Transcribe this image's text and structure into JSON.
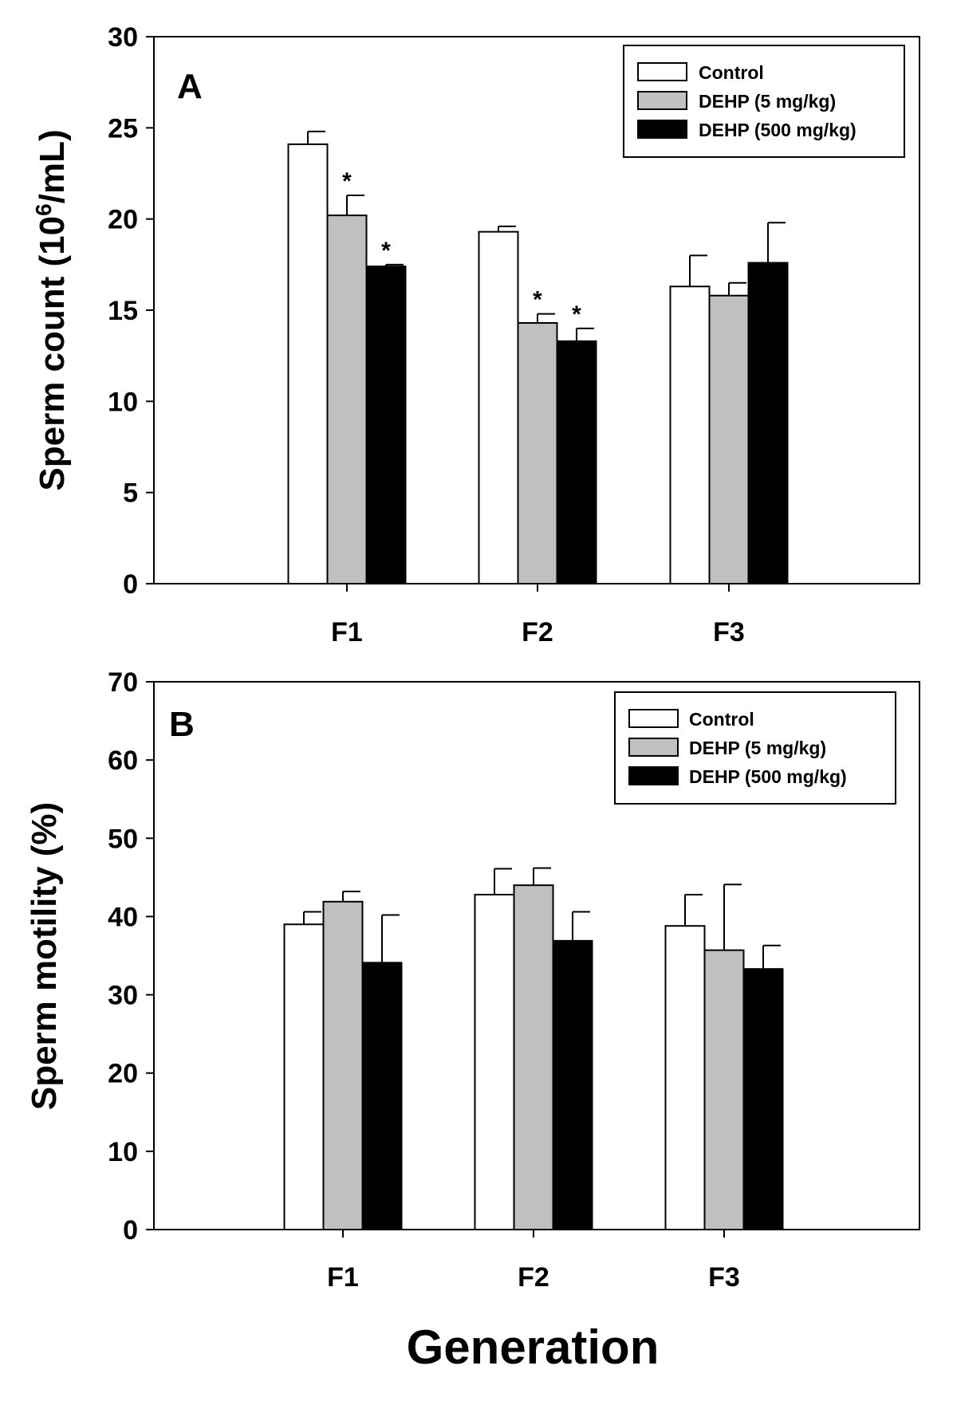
{
  "chart_data": [
    {
      "type": "bar",
      "panel_label": "A",
      "categories": [
        "F1",
        "F2",
        "F3"
      ],
      "series": [
        {
          "name": "Control",
          "color": "#ffffff",
          "values": [
            24.1,
            19.3,
            16.3
          ],
          "errors": [
            0.7,
            0.3,
            1.7
          ],
          "significance": [
            "",
            "",
            ""
          ]
        },
        {
          "name": "DEHP (5 mg/kg)",
          "color": "#c0c0c0",
          "values": [
            20.2,
            14.3,
            15.8
          ],
          "errors": [
            1.1,
            0.5,
            0.7
          ],
          "significance": [
            "*",
            "*",
            ""
          ]
        },
        {
          "name": "DEHP (500 mg/kg)",
          "color": "#000000",
          "values": [
            17.4,
            13.3,
            17.6
          ],
          "errors": [
            0.1,
            0.7,
            2.2
          ],
          "significance": [
            "*",
            "*",
            ""
          ]
        }
      ],
      "ylabel_prefix": "Sperm count (10",
      "ylabel_sup": "6",
      "ylabel_suffix": "/mL)",
      "ylim": [
        0,
        30
      ],
      "yticks": [
        0,
        5,
        10,
        15,
        20,
        25,
        30
      ],
      "legend": "top-right",
      "grid": false
    },
    {
      "type": "bar",
      "panel_label": "B",
      "categories": [
        "F1",
        "F2",
        "F3"
      ],
      "series": [
        {
          "name": "Control",
          "color": "#ffffff",
          "values": [
            39.0,
            42.8,
            38.8
          ],
          "errors": [
            1.6,
            3.3,
            4.0
          ],
          "significance": [
            "",
            "",
            ""
          ]
        },
        {
          "name": "DEHP (5 mg/kg)",
          "color": "#c0c0c0",
          "values": [
            41.9,
            44.0,
            35.7
          ],
          "errors": [
            1.3,
            2.2,
            8.4
          ],
          "significance": [
            "",
            "",
            ""
          ]
        },
        {
          "name": "DEHP (500 mg/kg)",
          "color": "#000000",
          "values": [
            34.1,
            36.9,
            33.3
          ],
          "errors": [
            6.1,
            3.7,
            3.0
          ],
          "significance": [
            "",
            "",
            ""
          ]
        }
      ],
      "ylabel": "Sperm motility (%)",
      "ylim": [
        0,
        70
      ],
      "yticks": [
        0,
        10,
        20,
        30,
        40,
        50,
        60,
        70
      ],
      "legend": "top-right",
      "grid": false
    }
  ],
  "xlabel": "Generation"
}
